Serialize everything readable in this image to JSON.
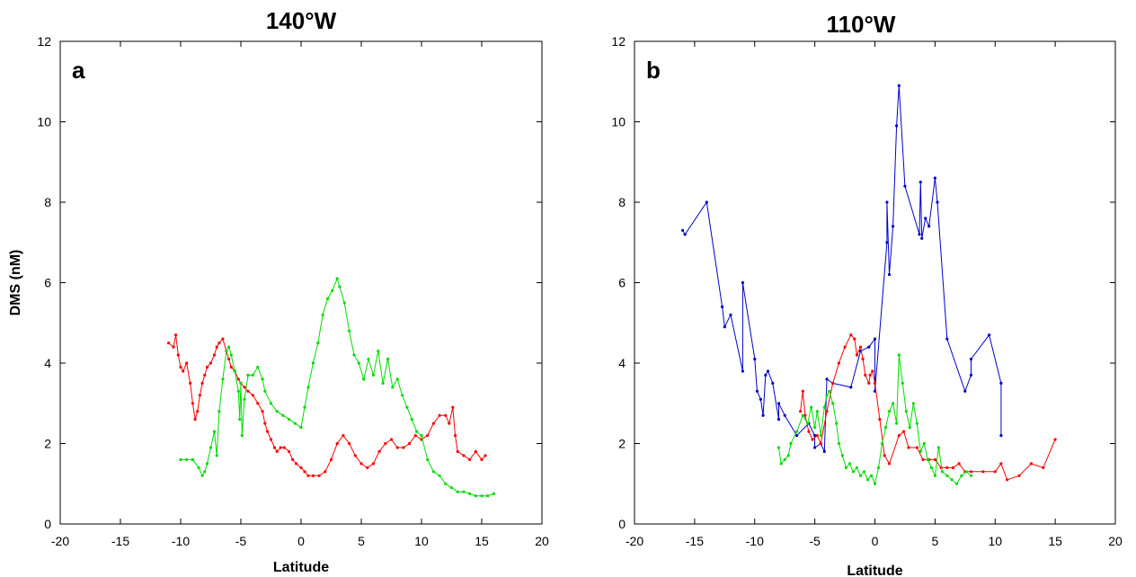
{
  "chart_data": [
    {
      "type": "line",
      "title": "140°W",
      "panel_label": "a",
      "xlabel": "Latitude",
      "ylabel": "DMS (nM)",
      "xlim": [
        -20,
        20
      ],
      "ylim": [
        0,
        12
      ],
      "xticks": [
        -20,
        -15,
        -10,
        -5,
        0,
        5,
        10,
        15,
        20
      ],
      "yticks": [
        0,
        2,
        4,
        6,
        8,
        10,
        12
      ],
      "grid": false,
      "series": [
        {
          "color": "#ff0000",
          "marker": "dot",
          "x": [
            -11,
            -10.6,
            -10.4,
            -10.2,
            -10,
            -9.8,
            -9.5,
            -9.2,
            -9,
            -8.8,
            -8.6,
            -8.4,
            -8.2,
            -8,
            -7.8,
            -7.5,
            -7.2,
            -7,
            -6.8,
            -6.5,
            -6.2,
            -6,
            -5.8,
            -5.5,
            -5.2,
            -5,
            -4.7,
            -4.4,
            -4,
            -3.6,
            -3.2,
            -3,
            -2.8,
            -2.5,
            -2.2,
            -2,
            -1.7,
            -1.4,
            -1,
            -0.7,
            -0.4,
            0,
            0.3,
            0.6,
            1,
            1.5,
            2,
            2.5,
            3,
            3.5,
            4,
            4.5,
            5,
            5.5,
            6,
            6.5,
            7,
            7.5,
            8,
            8.5,
            9,
            9.5,
            10,
            10.5,
            11,
            11.5,
            12,
            12.3,
            12.6,
            12.8,
            13,
            13.5,
            14,
            14.5,
            15,
            15.3
          ],
          "y": [
            4.5,
            4.4,
            4.7,
            4.2,
            3.9,
            3.8,
            4.0,
            3.5,
            3.0,
            2.6,
            2.8,
            3.2,
            3.5,
            3.7,
            3.9,
            4.0,
            4.2,
            4.4,
            4.5,
            4.6,
            4.3,
            4.1,
            3.9,
            3.8,
            3.6,
            3.5,
            3.4,
            3.3,
            3.2,
            3.0,
            2.8,
            2.5,
            2.3,
            2.1,
            1.9,
            1.8,
            1.9,
            1.9,
            1.8,
            1.6,
            1.5,
            1.4,
            1.3,
            1.2,
            1.2,
            1.2,
            1.3,
            1.6,
            2.0,
            2.2,
            2.0,
            1.7,
            1.5,
            1.4,
            1.5,
            1.8,
            2.0,
            2.1,
            1.9,
            1.9,
            2.0,
            2.2,
            2.1,
            2.2,
            2.5,
            2.7,
            2.7,
            2.5,
            2.9,
            2.2,
            1.8,
            1.7,
            1.6,
            1.8,
            1.6,
            1.7
          ]
        },
        {
          "color": "#00dd00",
          "marker": "dot",
          "x": [
            -10,
            -9.5,
            -9,
            -8.5,
            -8.2,
            -8,
            -7.8,
            -7.5,
            -7.2,
            -7,
            -6.8,
            -6.5,
            -6.2,
            -6,
            -5.8,
            -5.5,
            -5.2,
            -5.1,
            -5,
            -4.9,
            -4.7,
            -4.4,
            -4,
            -3.6,
            -3.2,
            -3,
            -2.5,
            -2,
            -1.5,
            -1,
            -0.5,
            0,
            0.3,
            0.6,
            1,
            1.4,
            1.8,
            2.2,
            2.6,
            3,
            3.2,
            3.6,
            4,
            4.4,
            4.8,
            5.2,
            5.6,
            6,
            6.4,
            6.8,
            7.2,
            7.6,
            8,
            8.4,
            8.8,
            9.2,
            9.6,
            10,
            10.5,
            11,
            11.5,
            12,
            12.5,
            13,
            13.5,
            14,
            14.5,
            15,
            15.5,
            16
          ],
          "y": [
            1.6,
            1.6,
            1.6,
            1.4,
            1.2,
            1.3,
            1.5,
            1.9,
            2.3,
            1.7,
            2.8,
            3.6,
            4.3,
            4.4,
            4.2,
            3.8,
            3.3,
            2.6,
            3.5,
            2.2,
            3.1,
            3.7,
            3.7,
            3.9,
            3.6,
            3.3,
            3.0,
            2.8,
            2.7,
            2.6,
            2.5,
            2.4,
            2.9,
            3.4,
            4.0,
            4.5,
            5.2,
            5.6,
            5.8,
            6.1,
            5.9,
            5.5,
            4.8,
            4.2,
            4.0,
            3.6,
            4.1,
            3.7,
            4.3,
            3.5,
            4.1,
            3.4,
            3.6,
            3.2,
            2.9,
            2.6,
            2.3,
            2.2,
            1.6,
            1.3,
            1.2,
            1.0,
            0.9,
            0.8,
            0.8,
            0.75,
            0.7,
            0.7,
            0.7,
            0.75
          ]
        }
      ]
    },
    {
      "type": "line",
      "title": "110°W",
      "panel_label": "b",
      "xlabel": "Latitude",
      "ylabel": "",
      "xlim": [
        -20,
        20
      ],
      "ylim": [
        0,
        12
      ],
      "xticks": [
        -20,
        -15,
        -10,
        -5,
        0,
        5,
        10,
        15,
        20
      ],
      "yticks": [
        0,
        2,
        4,
        6,
        8,
        10,
        12
      ],
      "grid": false,
      "series": [
        {
          "color": "#0000cc",
          "marker": "dot",
          "x": [
            -16,
            -15.8,
            -14,
            -12.7,
            -12.5,
            -12,
            -11,
            -11,
            -10,
            -9.8,
            -9.5,
            -9.3,
            -9.1,
            -8.9,
            -8.5,
            -8,
            -8,
            -7.5,
            -6.5,
            -5.5,
            -5,
            -5,
            -4.5,
            -4.2,
            -4,
            -3.5,
            -2,
            -1.2,
            -0.5,
            0,
            0,
            1,
            1,
            1.2,
            1.5,
            1.8,
            2,
            2.5,
            3.7,
            3.8,
            3.9,
            4.2,
            4.5,
            5,
            5.2,
            6,
            7.5,
            8,
            8,
            9.5,
            10.5,
            10.5
          ],
          "y": [
            7.3,
            7.2,
            8.0,
            5.4,
            4.9,
            5.2,
            3.8,
            6.0,
            4.1,
            3.3,
            3.1,
            2.7,
            3.7,
            3.8,
            3.5,
            2.6,
            3.0,
            2.7,
            2.2,
            2.5,
            2.2,
            1.9,
            2.0,
            1.8,
            3.6,
            3.5,
            3.4,
            4.3,
            4.4,
            4.6,
            3.3,
            7.0,
            8.0,
            6.2,
            7.4,
            9.9,
            10.9,
            8.4,
            7.2,
            8.5,
            7.1,
            7.6,
            7.4,
            8.6,
            8.0,
            4.6,
            3.3,
            3.7,
            4.1,
            4.7,
            3.5,
            2.2
          ]
        },
        {
          "color": "#ff0000",
          "marker": "dot",
          "x": [
            -6.2,
            -6,
            -5.8,
            -5.5,
            -5.2,
            -4.8,
            -4.5,
            -4,
            -3.5,
            -3,
            -2.5,
            -2,
            -1.7,
            -1.5,
            -1.2,
            -1,
            -0.8,
            -0.5,
            -0.4,
            -0.2,
            0,
            0.4,
            0.8,
            1.2,
            2,
            2.4,
            2.8,
            3.5,
            4,
            4.5,
            5,
            5.5,
            6,
            6.5,
            7,
            7.5,
            8,
            9,
            10,
            10.5,
            11,
            12,
            13,
            14,
            15
          ],
          "y": [
            2.8,
            3.3,
            2.7,
            2.3,
            2.1,
            2.2,
            2.0,
            2.8,
            3.5,
            4.0,
            4.4,
            4.7,
            4.6,
            4.2,
            4.4,
            4.1,
            3.7,
            3.5,
            3.7,
            3.8,
            3.5,
            2.6,
            1.7,
            1.5,
            2.2,
            2.3,
            1.9,
            1.9,
            1.6,
            1.6,
            1.6,
            1.4,
            1.4,
            1.4,
            1.5,
            1.3,
            1.3,
            1.3,
            1.3,
            1.5,
            1.1,
            1.2,
            1.5,
            1.4,
            2.1
          ]
        },
        {
          "color": "#00dd00",
          "marker": "dot",
          "x": [
            -8,
            -7.8,
            -7.5,
            -7.2,
            -7,
            -6.5,
            -6,
            -5.6,
            -5.3,
            -5,
            -4.8,
            -4.5,
            -4.2,
            -4,
            -3.8,
            -3.5,
            -3.2,
            -3,
            -2.7,
            -2.4,
            -2.1,
            -1.8,
            -1.5,
            -1.2,
            -0.9,
            -0.6,
            -0.3,
            0,
            0.3,
            0.6,
            0.9,
            1.2,
            1.5,
            1.8,
            2,
            2.3,
            2.6,
            2.9,
            3.2,
            3.5,
            3.8,
            4.1,
            4.4,
            4.7,
            5,
            5.3,
            5.6,
            6,
            6.4,
            6.8,
            7.2,
            7.6,
            8
          ],
          "y": [
            1.9,
            1.5,
            1.6,
            1.7,
            2.0,
            2.3,
            2.7,
            2.5,
            2.9,
            2.4,
            2.8,
            2.2,
            2.9,
            3.2,
            3.3,
            3.0,
            2.5,
            2.0,
            1.7,
            1.4,
            1.5,
            1.3,
            1.4,
            1.2,
            1.3,
            1.1,
            1.2,
            1.0,
            1.4,
            2.0,
            2.4,
            2.8,
            3.0,
            2.5,
            4.2,
            3.5,
            2.8,
            2.4,
            3.0,
            2.5,
            1.8,
            2.0,
            1.6,
            1.4,
            1.2,
            1.9,
            1.3,
            1.2,
            1.1,
            1.0,
            1.2,
            1.3,
            1.2
          ]
        }
      ]
    }
  ]
}
